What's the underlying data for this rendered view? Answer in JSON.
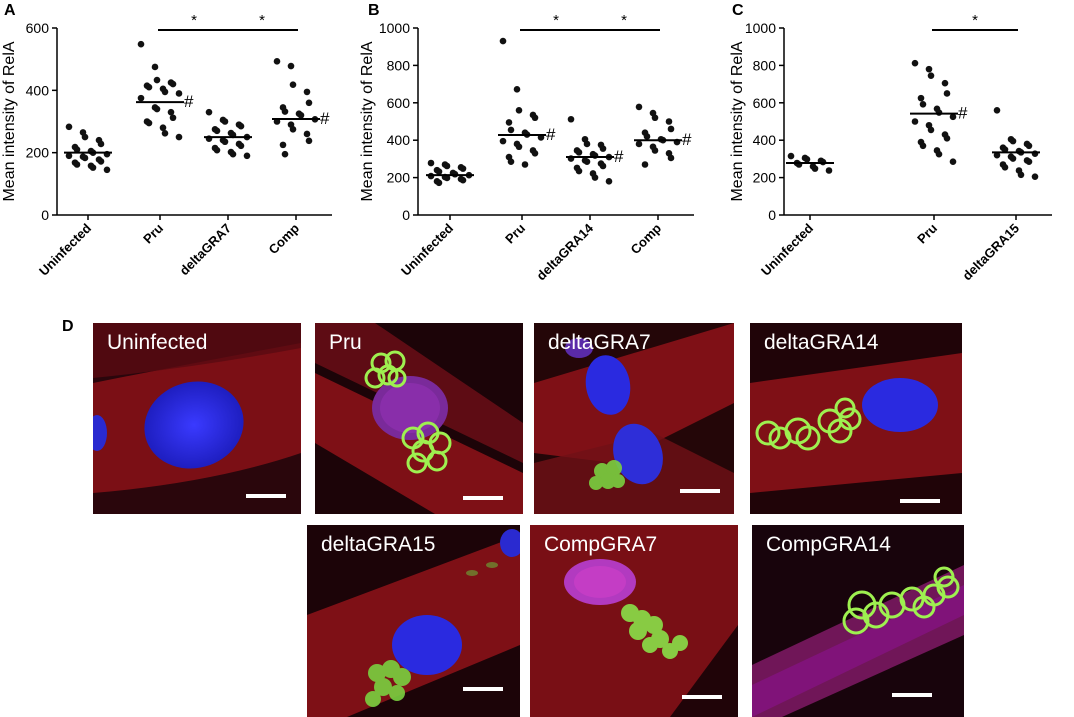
{
  "chart_data": [
    {
      "panel": "A",
      "type": "scatter",
      "ylabel": "Mean intensity of RelA",
      "ylim": [
        0,
        600
      ],
      "yticks": [
        "0",
        "200",
        "400",
        "600"
      ],
      "categories": [
        "Uninfected",
        "Pru",
        "deltaGRA7",
        "Comp"
      ],
      "medians": [
        200,
        362,
        250,
        308
      ],
      "points": [
        [
          283,
          265,
          250,
          240,
          228,
          218,
          210,
          205,
          200,
          195,
          190,
          187,
          183,
          178,
          172,
          168,
          162,
          158,
          152,
          145
        ],
        [
          548,
          475,
          433,
          425,
          420,
          415,
          410,
          405,
          395,
          390,
          375,
          345,
          340,
          330,
          312,
          300,
          295,
          280,
          262,
          250
        ],
        [
          330,
          305,
          300,
          290,
          285,
          275,
          270,
          263,
          257,
          250,
          245,
          240,
          235,
          228,
          222,
          215,
          208,
          202,
          195,
          190
        ],
        [
          493,
          478,
          418,
          395,
          360,
          345,
          332,
          325,
          320,
          307,
          300,
          290,
          275,
          260,
          238,
          225,
          195
        ]
      ],
      "hash_marks": [
        false,
        true,
        false,
        true
      ],
      "hash_symbol": "#",
      "significance": [
        {
          "from": 1,
          "to": 2,
          "label": "*"
        },
        {
          "from": 2,
          "to": 3,
          "label": "*"
        }
      ]
    },
    {
      "panel": "B",
      "type": "scatter",
      "ylabel": "Mean intensity of RelA",
      "ylim": [
        0,
        1000
      ],
      "yticks": [
        "0",
        "200",
        "400",
        "600",
        "800",
        "1000"
      ],
      "categories": [
        "Uninfected",
        "Pru",
        "deltaGRA14",
        "Comp"
      ],
      "medians": [
        213,
        428,
        310,
        400
      ],
      "points": [
        [
          278,
          270,
          262,
          255,
          248,
          240,
          232,
          225,
          218,
          213,
          208,
          203,
          198,
          192,
          186,
          180,
          172
        ],
        [
          930,
          672,
          560,
          535,
          520,
          495,
          455,
          440,
          430,
          415,
          395,
          380,
          365,
          345,
          330,
          310,
          285,
          270
        ],
        [
          512,
          405,
          380,
          375,
          355,
          345,
          335,
          325,
          318,
          310,
          302,
          292,
          285,
          275,
          262,
          252,
          235,
          222,
          200,
          180
        ],
        [
          578,
          545,
          520,
          500,
          460,
          440,
          420,
          405,
          400,
          390,
          380,
          365,
          345,
          330,
          305,
          270
        ]
      ],
      "hash_marks": [
        false,
        true,
        true,
        true
      ],
      "hash_symbol": "#",
      "significance": [
        {
          "from": 1,
          "to": 2,
          "label": "*"
        },
        {
          "from": 2,
          "to": 3,
          "label": "*"
        }
      ]
    },
    {
      "panel": "C",
      "type": "scatter",
      "ylabel": "Mean intensity of RelA",
      "ylim": [
        0,
        1000
      ],
      "yticks": [
        "0",
        "200",
        "400",
        "600",
        "800",
        "1000"
      ],
      "categories": [
        "Uninfected",
        "Pru",
        "deltaGRA15"
      ],
      "medians": [
        278,
        542,
        335
      ],
      "points": [
        [
          315,
          305,
          298,
          290,
          283,
          278,
          270,
          260,
          248,
          238
        ],
        [
          812,
          780,
          745,
          705,
          650,
          625,
          592,
          568,
          548,
          525,
          500,
          480,
          455,
          430,
          410,
          390,
          370,
          345,
          325,
          285
        ],
        [
          560,
          405,
          395,
          380,
          370,
          360,
          350,
          342,
          335,
          328,
          320,
          312,
          302,
          292,
          285,
          270,
          255,
          238,
          215,
          205
        ]
      ],
      "hash_marks": [
        false,
        true,
        false
      ],
      "hash_symbol": "#",
      "significance": [
        {
          "from": 1,
          "to": 2,
          "label": "*"
        }
      ]
    }
  ],
  "panels": {
    "a": "A",
    "b": "B",
    "c": "C",
    "d": "D"
  },
  "micrographs": [
    {
      "label": "Uninfected"
    },
    {
      "label": "Pru"
    },
    {
      "label": "deltaGRA7"
    },
    {
      "label": "deltaGRA14"
    },
    {
      "label": "deltaGRA15"
    },
    {
      "label": "CompGRA7"
    },
    {
      "label": "CompGRA14"
    }
  ],
  "colors": {
    "red_stain": "#b0141c",
    "blue_nucleus": "#2b2bd8",
    "green_parasite": "#8fe64a",
    "background": "#1a0408"
  }
}
